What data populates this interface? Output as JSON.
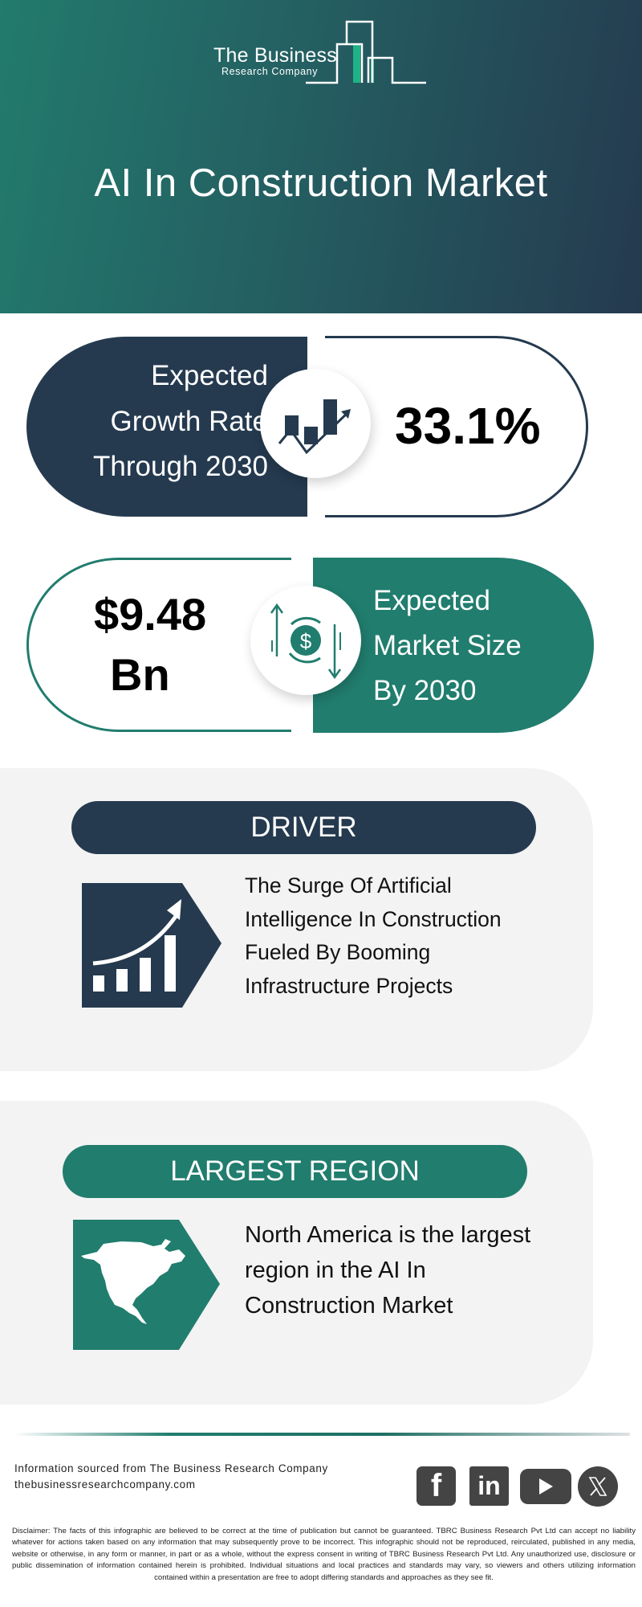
{
  "header": {
    "logo": {
      "line1": "The Business",
      "line2": "Research Company"
    },
    "title": "AI In Construction Market"
  },
  "colors": {
    "dark": "#253a4f",
    "teal": "#217d6e",
    "accent_green": "#1db386",
    "panel": "#f3f3f3"
  },
  "growth_card": {
    "label_lines": [
      "Expected",
      "Growth Rate",
      "Through 2030"
    ],
    "value": "33.1%",
    "icon": "growth-chart-icon"
  },
  "market_card": {
    "value_lines": [
      "$9.48",
      "Bn"
    ],
    "label_lines": [
      "Expected",
      "Market Size",
      "By 2030"
    ],
    "icon": "dollar-exchange-icon"
  },
  "driver": {
    "heading": "DRIVER",
    "text_lines": [
      "The Surge Of Artificial",
      "Intelligence In Construction",
      "Fueled By Booming",
      "Infrastructure Projects"
    ],
    "icon": "rising-bar-chart-icon"
  },
  "region": {
    "heading": "LARGEST REGION",
    "text_lines": [
      "North America is the largest",
      "region in the AI In",
      "Construction Market"
    ],
    "icon": "north-america-map-icon"
  },
  "footer": {
    "source_line": "Information sourced from The Business Research Company",
    "website": "thebusinessresearchcompany.com",
    "social": [
      "facebook-icon",
      "linkedin-icon",
      "youtube-icon",
      "x-icon"
    ],
    "disclaimer": "Disclaimer: The facts of this infographic are believed to be correct at the time of publication but cannot be guaranteed. TBRC Business Research Pvt Ltd can accept no liability whatever for actions taken based on any information that may subsequently prove to be incorrect. This infographic should not be reproduced, reirculated, published in any media, website or otherwise, in any form or manner, in part or as a whole, without the express consent in writing of TBRC Business Research Pvt Ltd. Any unauthorized use, disclosure or public dissemination of information contained herein is prohibited. Individual situations and local practices and standards may vary, so viewers and others utilizing information contained within a presentation are free to adopt differing standards and approaches as they see fit."
  }
}
